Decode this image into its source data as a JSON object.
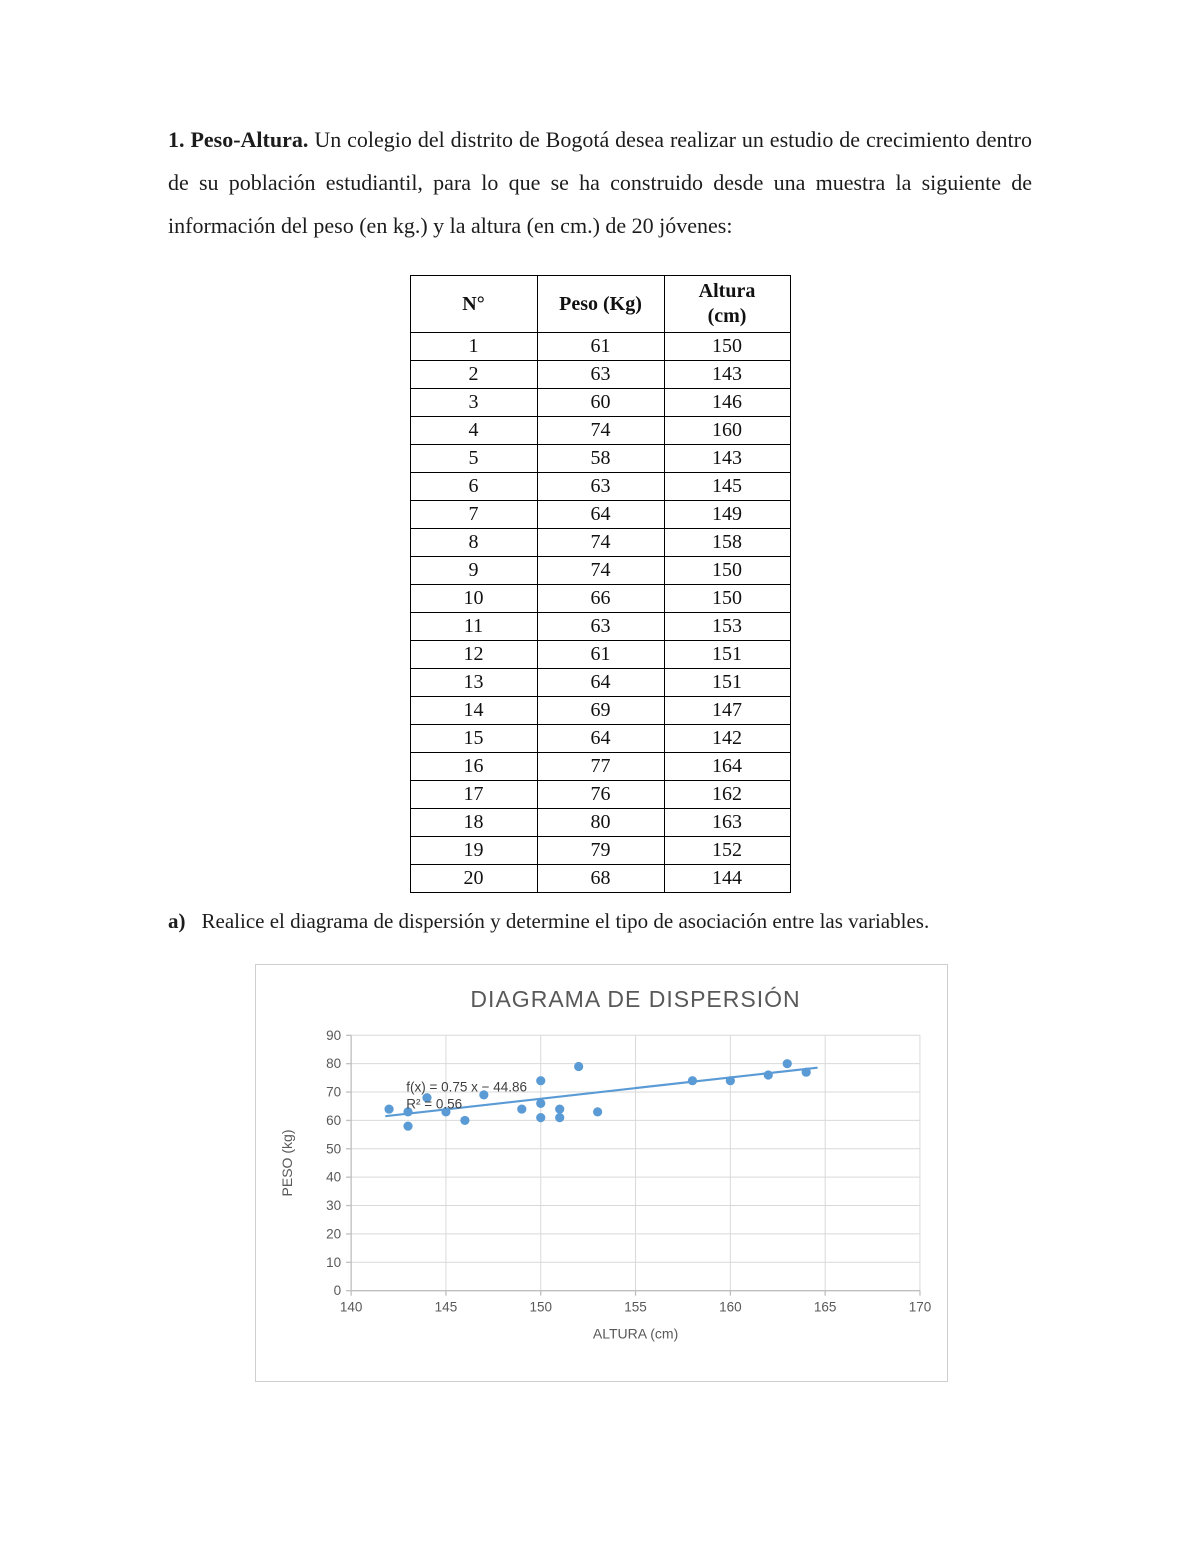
{
  "document": {
    "intro_lead": "1. Peso-Altura.",
    "intro_text": "Un colegio del distrito de Bogotá desea realizar un estudio de crecimiento dentro de su población estudiantil, para lo que se ha construido desde una muestra la siguiente de información del peso (en kg.) y la altura (en cm.) de 20 jóvenes:",
    "item_a_label": "a)",
    "item_a_text": "Realice el diagrama de dispersión y determine el tipo de asociación entre las variables."
  },
  "table": {
    "headers": [
      "N°",
      "Peso (Kg)",
      "Altura\n(cm)"
    ],
    "rows": [
      [
        "1",
        "61",
        "150"
      ],
      [
        "2",
        "63",
        "143"
      ],
      [
        "3",
        "60",
        "146"
      ],
      [
        "4",
        "74",
        "160"
      ],
      [
        "5",
        "58",
        "143"
      ],
      [
        "6",
        "63",
        "145"
      ],
      [
        "7",
        "64",
        "149"
      ],
      [
        "8",
        "74",
        "158"
      ],
      [
        "9",
        "74",
        "150"
      ],
      [
        "10",
        "66",
        "150"
      ],
      [
        "11",
        "63",
        "153"
      ],
      [
        "12",
        "61",
        "151"
      ],
      [
        "13",
        "64",
        "151"
      ],
      [
        "14",
        "69",
        "147"
      ],
      [
        "15",
        "64",
        "142"
      ],
      [
        "16",
        "77",
        "164"
      ],
      [
        "17",
        "76",
        "162"
      ],
      [
        "18",
        "80",
        "163"
      ],
      [
        "19",
        "79",
        "152"
      ],
      [
        "20",
        "68",
        "144"
      ]
    ]
  },
  "chart_data": {
    "type": "scatter",
    "title": "DIAGRAMA DE DISPERSIÓN",
    "xlabel": "ALTURA (cm)",
    "ylabel": "PESO (kg)",
    "xlim": [
      140,
      170
    ],
    "ylim": [
      0,
      90
    ],
    "x_ticks": [
      140,
      145,
      150,
      155,
      160,
      165,
      170
    ],
    "y_ticks": [
      0,
      10,
      20,
      30,
      40,
      50,
      60,
      70,
      80,
      90
    ],
    "grid": "on",
    "legend": "none",
    "points": [
      {
        "x": 150,
        "y": 61
      },
      {
        "x": 143,
        "y": 63
      },
      {
        "x": 146,
        "y": 60
      },
      {
        "x": 160,
        "y": 74
      },
      {
        "x": 143,
        "y": 58
      },
      {
        "x": 145,
        "y": 63
      },
      {
        "x": 149,
        "y": 64
      },
      {
        "x": 158,
        "y": 74
      },
      {
        "x": 150,
        "y": 74
      },
      {
        "x": 150,
        "y": 66
      },
      {
        "x": 153,
        "y": 63
      },
      {
        "x": 151,
        "y": 61
      },
      {
        "x": 151,
        "y": 64
      },
      {
        "x": 147,
        "y": 69
      },
      {
        "x": 142,
        "y": 64
      },
      {
        "x": 164,
        "y": 77
      },
      {
        "x": 162,
        "y": 76
      },
      {
        "x": 163,
        "y": 80
      },
      {
        "x": 152,
        "y": 79
      },
      {
        "x": 144,
        "y": 68
      }
    ],
    "trendline": {
      "slope": 0.75,
      "intercept": -44.86,
      "equation_label": "f(x) = 0.75 x − 44.86",
      "r_squared_label": "R² = 0.56",
      "x_range": [
        141.8,
        164.6
      ]
    },
    "point_color": "#5B9BD5",
    "trendline_color": "#5B9BD5",
    "gridline_color": "#D9D9D9",
    "axis_color": "#BFBFBF",
    "text_color": "#595959",
    "annotation_color": "#3F3F3F"
  }
}
